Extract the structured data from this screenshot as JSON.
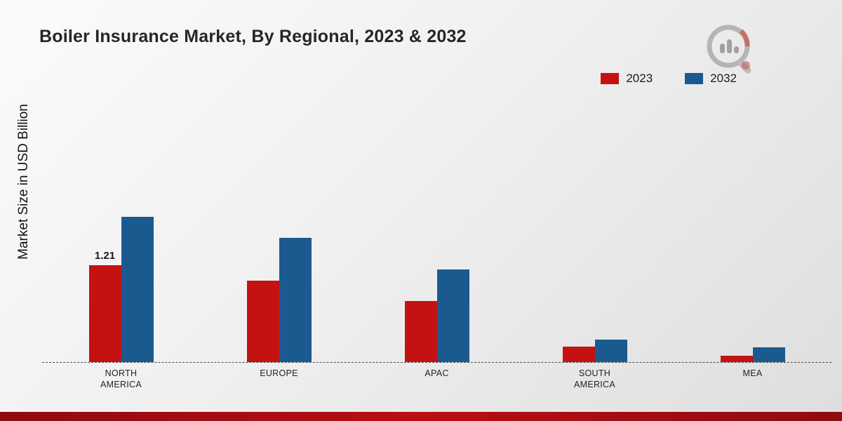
{
  "page": {
    "title": "Boiler Insurance Market, By Regional, 2023 & 2032",
    "ylabel": "Market Size in USD Billion"
  },
  "colors": {
    "series_2023": "#c41212",
    "series_2032": "#1b5a8f",
    "footer_strip": "#a50d12",
    "baseline": "#4a4a4a"
  },
  "branding": {
    "logo_name": "market-research-future-logo"
  },
  "chart_data": {
    "type": "bar",
    "title": "Boiler Insurance Market, By Regional, 2023 & 2032",
    "xlabel": "",
    "ylabel": "Market Size in USD Billion",
    "categories": [
      "NORTH AMERICA",
      "EUROPE",
      "APAC",
      "SOUTH AMERICA",
      "MEA"
    ],
    "series": [
      {
        "name": "2023",
        "color": "#c41212",
        "values": [
          1.21,
          1.02,
          0.76,
          0.19,
          0.08
        ],
        "data_labels": [
          "1.21",
          "",
          "",
          "",
          ""
        ]
      },
      {
        "name": "2032",
        "color": "#1b5a8f",
        "values": [
          1.82,
          1.55,
          1.16,
          0.28,
          0.18
        ],
        "data_labels": [
          "",
          "",
          "",
          "",
          ""
        ]
      }
    ],
    "ylim": [
      0,
      2
    ],
    "grid": false,
    "legend_position": "top-right",
    "baseline_style": "dashed",
    "units": "USD Billion"
  }
}
